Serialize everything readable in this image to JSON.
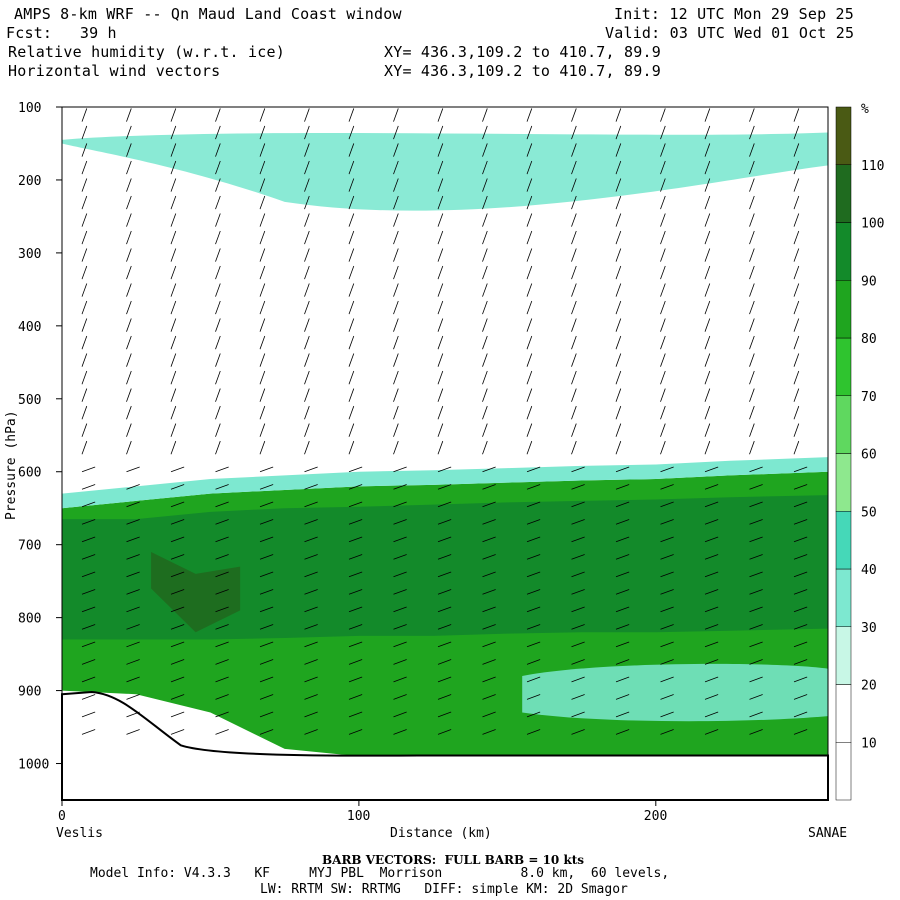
{
  "header": {
    "title": "AMPS 8-km WRF -- Qn Maud Land Coast window",
    "init": "Init: 12 UTC Mon 29 Sep 25",
    "fcst": "Fcst:   39 h",
    "valid": "Valid: 03 UTC Wed 01 Oct 25",
    "field1": "Relative humidity (w.r.t. ice)",
    "xy1": "XY= 436.3,109.2 to 410.7, 89.9",
    "field2": "Horizontal wind vectors",
    "xy2": "XY= 436.3,109.2 to 410.7, 89.9"
  },
  "footer": {
    "barb_note": "BARB VECTORS:  FULL BARB = 10 kts",
    "model_info": "Model Info: V4.3.3   KF     MYJ PBL  Morrison          8.0 km,  60 levels,",
    "model_info2": "LW: RRTM SW: RRTMG   DIFF: simple KM: 2D Smagor"
  },
  "colors": {
    "rh_levels": [
      "#ffffff",
      "#ffffff",
      "#ffffff",
      "#c8f7e6",
      "#7de8d0",
      "#45d8b8",
      "#8ee88e",
      "#5fd85f",
      "#2fc42f",
      "#1fa51f",
      "#138a2a",
      "#1f6b1f",
      "#4a5a14",
      "#d02a08"
    ],
    "terrain": "#ffffff"
  },
  "chart_data": {
    "type": "heatmap",
    "title": "Relative humidity (w.r.t. ice)",
    "xlabel": "Distance (km)",
    "ylabel": "Pressure (hPa)",
    "x_range": [
      0,
      258
    ],
    "y_range": [
      1050,
      100
    ],
    "x_ticks": [
      0,
      100,
      200
    ],
    "y_ticks": [
      100,
      200,
      300,
      400,
      500,
      600,
      700,
      800,
      900,
      1000
    ],
    "x_left_label": "Veslis",
    "x_right_label": "SANAE",
    "colorbar": {
      "unit": "%",
      "ticks": [
        10,
        20,
        30,
        40,
        50,
        60,
        70,
        80,
        90,
        100,
        110
      ],
      "bounds": [
        0,
        10,
        20,
        30,
        40,
        50,
        60,
        70,
        80,
        90,
        100,
        110,
        120
      ]
    },
    "layers": [
      {
        "name": "RH >= 80",
        "top": [
          650,
          640,
          630,
          625,
          620,
          618,
          615,
          612,
          610,
          605,
          600
        ],
        "bottom": [
          900,
          905,
          930,
          980,
          990,
          990,
          990,
          990,
          990,
          990,
          990
        ],
        "x": [
          0,
          25,
          50,
          75,
          100,
          125,
          150,
          175,
          200,
          225,
          258
        ],
        "level": 80
      },
      {
        "name": "RH >= 90",
        "top": [
          665,
          665,
          655,
          650,
          648,
          645,
          642,
          640,
          638,
          635,
          632
        ],
        "bottom": [
          830,
          830,
          830,
          828,
          825,
          825,
          822,
          820,
          820,
          818,
          815
        ],
        "x": [
          0,
          25,
          50,
          75,
          100,
          125,
          150,
          175,
          200,
          225,
          258
        ],
        "level": 90
      },
      {
        "name": "RH >= 100",
        "top": [
          710,
          740,
          730
        ],
        "bottom": [
          760,
          820,
          790
        ],
        "x": [
          30,
          45,
          60
        ],
        "level": 100
      }
    ],
    "high_rh_band_200hPa": {
      "p_top": 145,
      "p_bottom": 260,
      "level": 30
    },
    "wind_barb_full_kts": 10
  }
}
